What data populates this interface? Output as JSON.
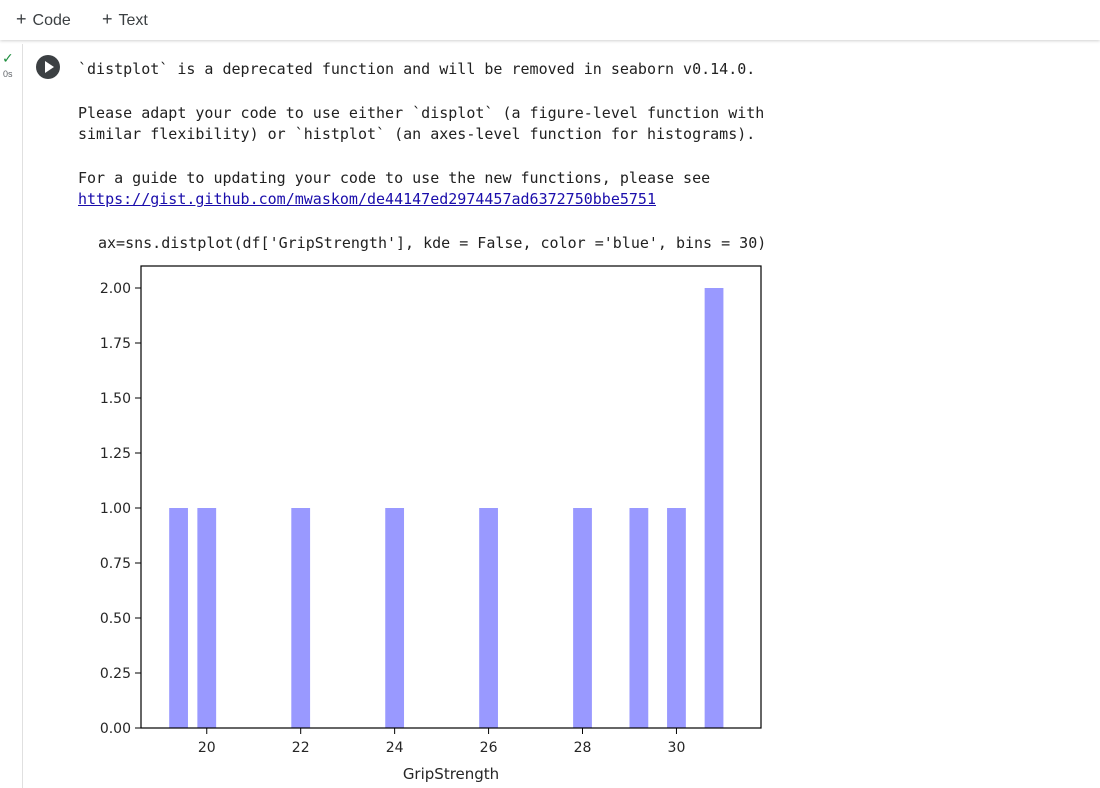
{
  "toolbar": {
    "code_label": "Code",
    "text_label": "Text"
  },
  "cell": {
    "status": "✓",
    "exec_time": "0s",
    "warning_lines": [
      "`distplot` is a deprecated function and will be removed in seaborn v0.14.0.",
      "Please adapt your code to use either `displot` (a figure-level function with",
      "similar flexibility) or `histplot` (an axes-level function for histograms).",
      "For a guide to updating your code to use the new functions, please see"
    ],
    "link": "https://gist.github.com/mwaskom/de44147ed2974457ad6372750bbe5751",
    "code_line": "ax=sns.distplot(df['GripStrength'], kde = False, color ='blue', bins = 30)"
  },
  "chart_data": {
    "type": "bar",
    "title": "",
    "xlabel": "GripStrength",
    "ylabel": "",
    "bar_color": "#9999ff",
    "xlim": [
      18.6,
      31.8
    ],
    "ylim": [
      0,
      2.1
    ],
    "bin_width": 0.4,
    "x_ticks": [
      20,
      22,
      24,
      26,
      28,
      30
    ],
    "y_ticks": [
      "0.00",
      "0.25",
      "0.50",
      "0.75",
      "1.00",
      "1.25",
      "1.50",
      "1.75",
      "2.00"
    ],
    "bins": [
      {
        "x": 19.4,
        "count": 1
      },
      {
        "x": 20.0,
        "count": 1
      },
      {
        "x": 22.0,
        "count": 1
      },
      {
        "x": 24.0,
        "count": 1
      },
      {
        "x": 26.0,
        "count": 1
      },
      {
        "x": 28.0,
        "count": 1
      },
      {
        "x": 29.2,
        "count": 1
      },
      {
        "x": 30.0,
        "count": 1
      },
      {
        "x": 30.8,
        "count": 2
      }
    ]
  }
}
